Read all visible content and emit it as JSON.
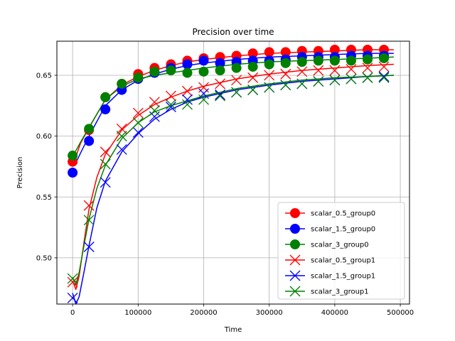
{
  "chart_data": {
    "type": "line",
    "title": "Precision over time",
    "xlabel": "Time",
    "ylabel": "Precision",
    "xlim": [
      -24000,
      514000
    ],
    "ylim": [
      0.462,
      0.678
    ],
    "xticks": [
      0,
      100000,
      200000,
      300000,
      400000,
      500000
    ],
    "xtick_labels": [
      "0",
      "100000",
      "200000",
      "300000",
      "400000",
      "500000"
    ],
    "yticks": [
      0.5,
      0.55,
      0.6,
      0.65
    ],
    "ytick_labels": [
      "0.50",
      "0.55",
      "0.60",
      "0.65"
    ],
    "grid": true,
    "legend_position": "lower-right",
    "marker_x": [
      0,
      25000,
      50000,
      75000,
      100000,
      125000,
      150000,
      175000,
      200000,
      225000,
      250000,
      275000,
      300000,
      325000,
      350000,
      375000,
      400000,
      425000,
      450000,
      475000
    ],
    "series": [
      {
        "name": "scalar_0.5_group0",
        "color": "#ff0000",
        "marker": "circle",
        "markers": [
          0.579,
          0.605,
          0.632,
          0.643,
          0.651,
          0.656,
          0.659,
          0.662,
          0.664,
          0.665,
          0.666,
          0.668,
          0.669,
          0.669,
          0.67,
          0.67,
          0.671,
          0.671,
          0.671,
          0.671
        ],
        "line": [
          [
            0,
            0.576
          ],
          [
            5000,
            0.583
          ],
          [
            12000,
            0.594
          ],
          [
            25000,
            0.607
          ],
          [
            50000,
            0.63
          ],
          [
            75000,
            0.642
          ],
          [
            100000,
            0.649
          ],
          [
            125000,
            0.654
          ],
          [
            150000,
            0.658
          ],
          [
            175000,
            0.661
          ],
          [
            200000,
            0.663
          ],
          [
            250000,
            0.666
          ],
          [
            300000,
            0.668
          ],
          [
            350000,
            0.669
          ],
          [
            400000,
            0.67
          ],
          [
            450000,
            0.671
          ],
          [
            490000,
            0.671
          ]
        ]
      },
      {
        "name": "scalar_1.5_group0",
        "color": "#0000ff",
        "marker": "circle",
        "markers": [
          0.57,
          0.596,
          0.622,
          0.638,
          0.647,
          0.652,
          0.656,
          0.659,
          0.662,
          0.66,
          0.661,
          0.662,
          0.662,
          0.663,
          0.665,
          0.665,
          0.665,
          0.666,
          0.666,
          0.666
        ],
        "line": [
          [
            0,
            0.575
          ],
          [
            5000,
            0.578
          ],
          [
            12000,
            0.586
          ],
          [
            25000,
            0.6
          ],
          [
            50000,
            0.625
          ],
          [
            75000,
            0.638
          ],
          [
            100000,
            0.646
          ],
          [
            125000,
            0.651
          ],
          [
            150000,
            0.655
          ],
          [
            175000,
            0.658
          ],
          [
            200000,
            0.66
          ],
          [
            250000,
            0.663
          ],
          [
            300000,
            0.665
          ],
          [
            350000,
            0.666
          ],
          [
            400000,
            0.667
          ],
          [
            450000,
            0.668
          ],
          [
            490000,
            0.668
          ]
        ]
      },
      {
        "name": "scalar_3_group0",
        "color": "#008000",
        "marker": "circle",
        "markers": [
          0.584,
          0.606,
          0.632,
          0.643,
          0.648,
          0.653,
          0.654,
          0.652,
          0.653,
          0.654,
          0.656,
          0.657,
          0.659,
          0.66,
          0.661,
          0.662,
          0.662,
          0.662,
          0.663,
          0.664
        ],
        "line": [
          [
            0,
            0.584
          ],
          [
            5000,
            0.588
          ],
          [
            12000,
            0.595
          ],
          [
            25000,
            0.607
          ],
          [
            50000,
            0.63
          ],
          [
            75000,
            0.641
          ],
          [
            100000,
            0.647
          ],
          [
            125000,
            0.65
          ],
          [
            150000,
            0.652
          ],
          [
            175000,
            0.654
          ],
          [
            200000,
            0.656
          ],
          [
            250000,
            0.659
          ],
          [
            300000,
            0.661
          ],
          [
            350000,
            0.662
          ],
          [
            400000,
            0.663
          ],
          [
            450000,
            0.664
          ],
          [
            490000,
            0.665
          ]
        ]
      },
      {
        "name": "scalar_0.5_group1",
        "color": "#ff0000",
        "marker": "x",
        "markers": [
          0.48,
          0.543,
          0.587,
          0.606,
          0.619,
          0.628,
          0.633,
          0.637,
          0.64,
          0.643,
          0.646,
          0.648,
          0.65,
          0.651,
          0.653,
          0.654,
          0.654,
          0.655,
          0.656,
          0.657
        ],
        "line": [
          [
            0,
            0.481
          ],
          [
            5000,
            0.474
          ],
          [
            10000,
            0.485
          ],
          [
            18000,
            0.515
          ],
          [
            25000,
            0.54
          ],
          [
            37000,
            0.566
          ],
          [
            50000,
            0.585
          ],
          [
            75000,
            0.605
          ],
          [
            100000,
            0.617
          ],
          [
            125000,
            0.626
          ],
          [
            150000,
            0.632
          ],
          [
            175000,
            0.637
          ],
          [
            200000,
            0.641
          ],
          [
            250000,
            0.647
          ],
          [
            300000,
            0.651
          ],
          [
            350000,
            0.654
          ],
          [
            400000,
            0.656
          ],
          [
            450000,
            0.658
          ],
          [
            490000,
            0.659
          ]
        ]
      },
      {
        "name": "scalar_1.5_group1",
        "color": "#0000ff",
        "marker": "x",
        "markers": [
          0.467,
          0.509,
          0.562,
          0.589,
          0.603,
          0.616,
          0.624,
          0.63,
          0.635,
          0.634,
          0.636,
          0.638,
          0.64,
          0.642,
          0.643,
          0.645,
          0.646,
          0.647,
          0.648,
          0.649
        ],
        "line": [
          [
            0,
            0.471
          ],
          [
            5000,
            0.462
          ],
          [
            10000,
            0.468
          ],
          [
            18000,
            0.49
          ],
          [
            25000,
            0.51
          ],
          [
            37000,
            0.541
          ],
          [
            50000,
            0.563
          ],
          [
            75000,
            0.587
          ],
          [
            100000,
            0.602
          ],
          [
            125000,
            0.614
          ],
          [
            150000,
            0.622
          ],
          [
            175000,
            0.628
          ],
          [
            200000,
            0.632
          ],
          [
            250000,
            0.638
          ],
          [
            300000,
            0.642
          ],
          [
            350000,
            0.645
          ],
          [
            400000,
            0.647
          ],
          [
            450000,
            0.649
          ],
          [
            490000,
            0.65
          ]
        ]
      },
      {
        "name": "scalar_3_group1",
        "color": "#008000",
        "marker": "x",
        "markers": [
          0.483,
          0.531,
          0.577,
          0.6,
          0.611,
          0.621,
          0.626,
          0.626,
          0.63,
          0.633,
          0.636,
          0.638,
          0.64,
          0.642,
          0.643,
          0.645,
          0.646,
          0.647,
          0.648,
          0.648
        ],
        "line": [
          [
            0,
            0.484
          ],
          [
            5000,
            0.478
          ],
          [
            10000,
            0.488
          ],
          [
            18000,
            0.512
          ],
          [
            25000,
            0.532
          ],
          [
            37000,
            0.557
          ],
          [
            50000,
            0.576
          ],
          [
            75000,
            0.598
          ],
          [
            100000,
            0.611
          ],
          [
            125000,
            0.62
          ],
          [
            150000,
            0.625
          ],
          [
            175000,
            0.629
          ],
          [
            200000,
            0.633
          ],
          [
            250000,
            0.639
          ],
          [
            300000,
            0.643
          ],
          [
            350000,
            0.646
          ],
          [
            400000,
            0.648
          ],
          [
            450000,
            0.649
          ],
          [
            490000,
            0.65
          ]
        ]
      }
    ]
  }
}
